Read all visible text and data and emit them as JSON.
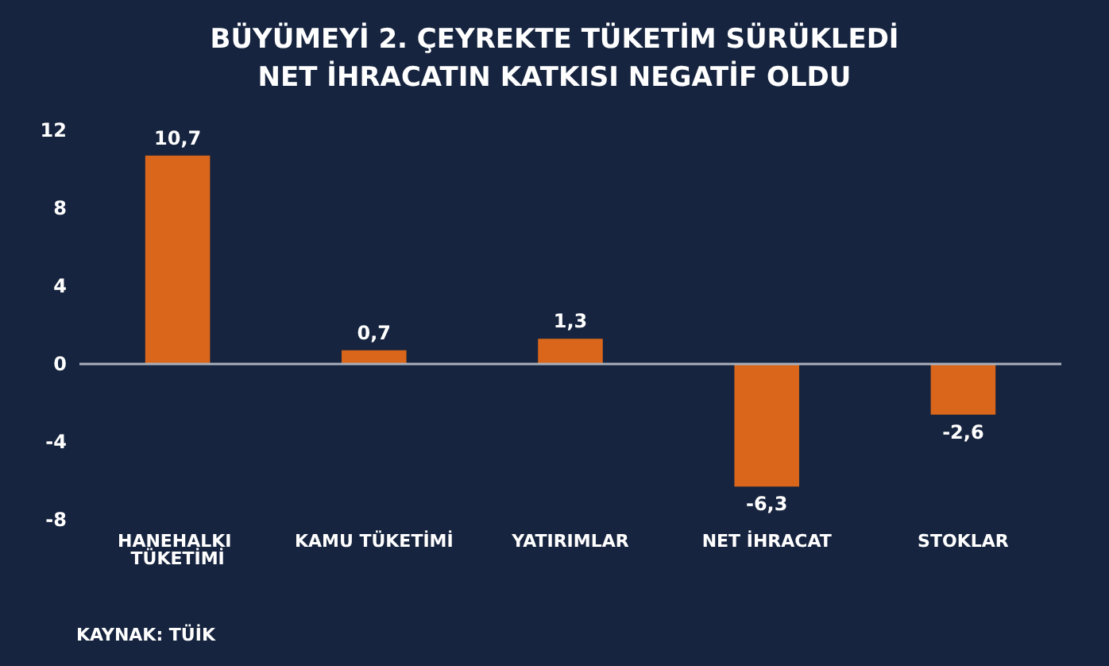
{
  "chart_data": {
    "type": "bar",
    "title": "BÜYÜMEYİ 2. ÇEYREKTE TÜKETİM SÜRÜKLEDİ\nNET İHRACATIN KATKISI NEGATİF OLDU",
    "categories": [
      "HANEHALKI TÜKETİMİ",
      "KAMU TÜKETİMİ",
      "YATIRIMLAR",
      "NET İHRACAT",
      "STOKLAR"
    ],
    "values": [
      10.7,
      0.7,
      1.3,
      -6.3,
      -2.6
    ],
    "value_labels": [
      "10,7",
      "0,7",
      "1,3",
      "-6,3",
      "-2,6"
    ],
    "color": "#d9661a",
    "ylim": [
      -8,
      12
    ],
    "yticks": [
      -8,
      -4,
      0,
      4,
      8,
      12
    ],
    "ref_lines": [
      {
        "axis": "y",
        "value": 0,
        "color": "#aab0bb"
      }
    ],
    "annotations": [
      "KAYNAK: TÜİK"
    ]
  }
}
